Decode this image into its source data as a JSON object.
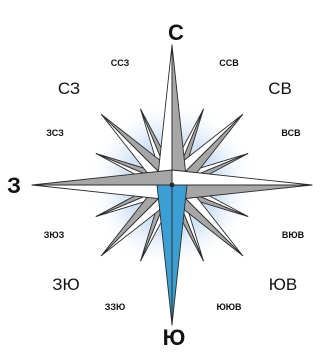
{
  "compass": {
    "labels": {
      "n": "С",
      "s": "Ю",
      "w": "З",
      "ne": "СВ",
      "nw": "СЗ",
      "se": "ЮВ",
      "sw": "ЗЮ",
      "nne": "ССВ",
      "nnw": "ССЗ",
      "ene": "ВСВ",
      "wnw": "ЗСЗ",
      "ese": "ВЮВ",
      "wsw": "ЗЮЗ",
      "sse": "ЮЮВ",
      "ssw": "ЗЗЮ"
    },
    "highlighted_needle": "south",
    "colors": {
      "needle_highlight": "#3c9fd4",
      "needle_light": "#ffffff",
      "needle_dark": "#a6a6a6",
      "outline": "#2c2c2c",
      "glow": "#b9d2f0",
      "text": "#111111"
    }
  }
}
